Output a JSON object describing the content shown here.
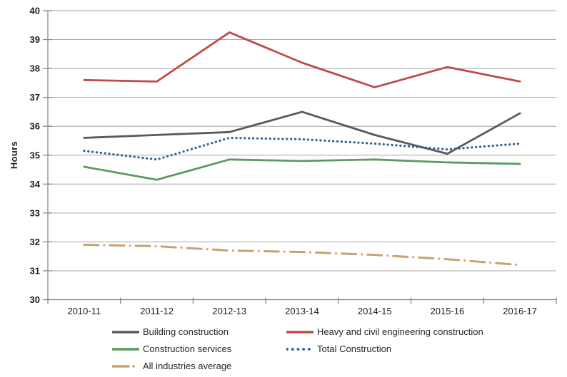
{
  "chart_data": {
    "type": "line",
    "title": "",
    "ylabel": "Hours",
    "xlabel": "",
    "ylim": [
      30,
      40
    ],
    "ytick_step": 1,
    "grid": true,
    "legend_position": "bottom",
    "legend_columns": 2,
    "categories": [
      "2010-11",
      "2011-12",
      "2012-13",
      "2013-14",
      "2014-15",
      "2015-16",
      "2016-17"
    ],
    "series": [
      {
        "name": "Building construction",
        "color": "#58595B",
        "style": "solid",
        "values": [
          35.6,
          35.7,
          35.8,
          36.5,
          35.7,
          35.05,
          36.45
        ]
      },
      {
        "name": "Heavy and civil engineering construction",
        "color": "#BE4B48",
        "style": "solid",
        "values": [
          37.6,
          37.55,
          39.25,
          38.2,
          37.35,
          38.05,
          37.55
        ]
      },
      {
        "name": "Construction services",
        "color": "#5B9B5D",
        "style": "solid",
        "values": [
          34.6,
          34.15,
          34.85,
          34.8,
          34.85,
          34.75,
          34.7
        ]
      },
      {
        "name": "Total Construction",
        "color": "#2E6095",
        "style": "dotted",
        "values": [
          35.15,
          34.85,
          35.6,
          35.55,
          35.4,
          35.2,
          35.4
        ]
      },
      {
        "name": "All industries average",
        "color": "#C9A173",
        "style": "dashdot",
        "values": [
          31.9,
          31.85,
          31.7,
          31.65,
          31.55,
          31.4,
          31.2
        ]
      }
    ]
  },
  "colors": {
    "background": "#FFFFFF",
    "gridline": "#A6A6A6",
    "axis": "#808080",
    "tick_text": "#1F1F1F"
  }
}
